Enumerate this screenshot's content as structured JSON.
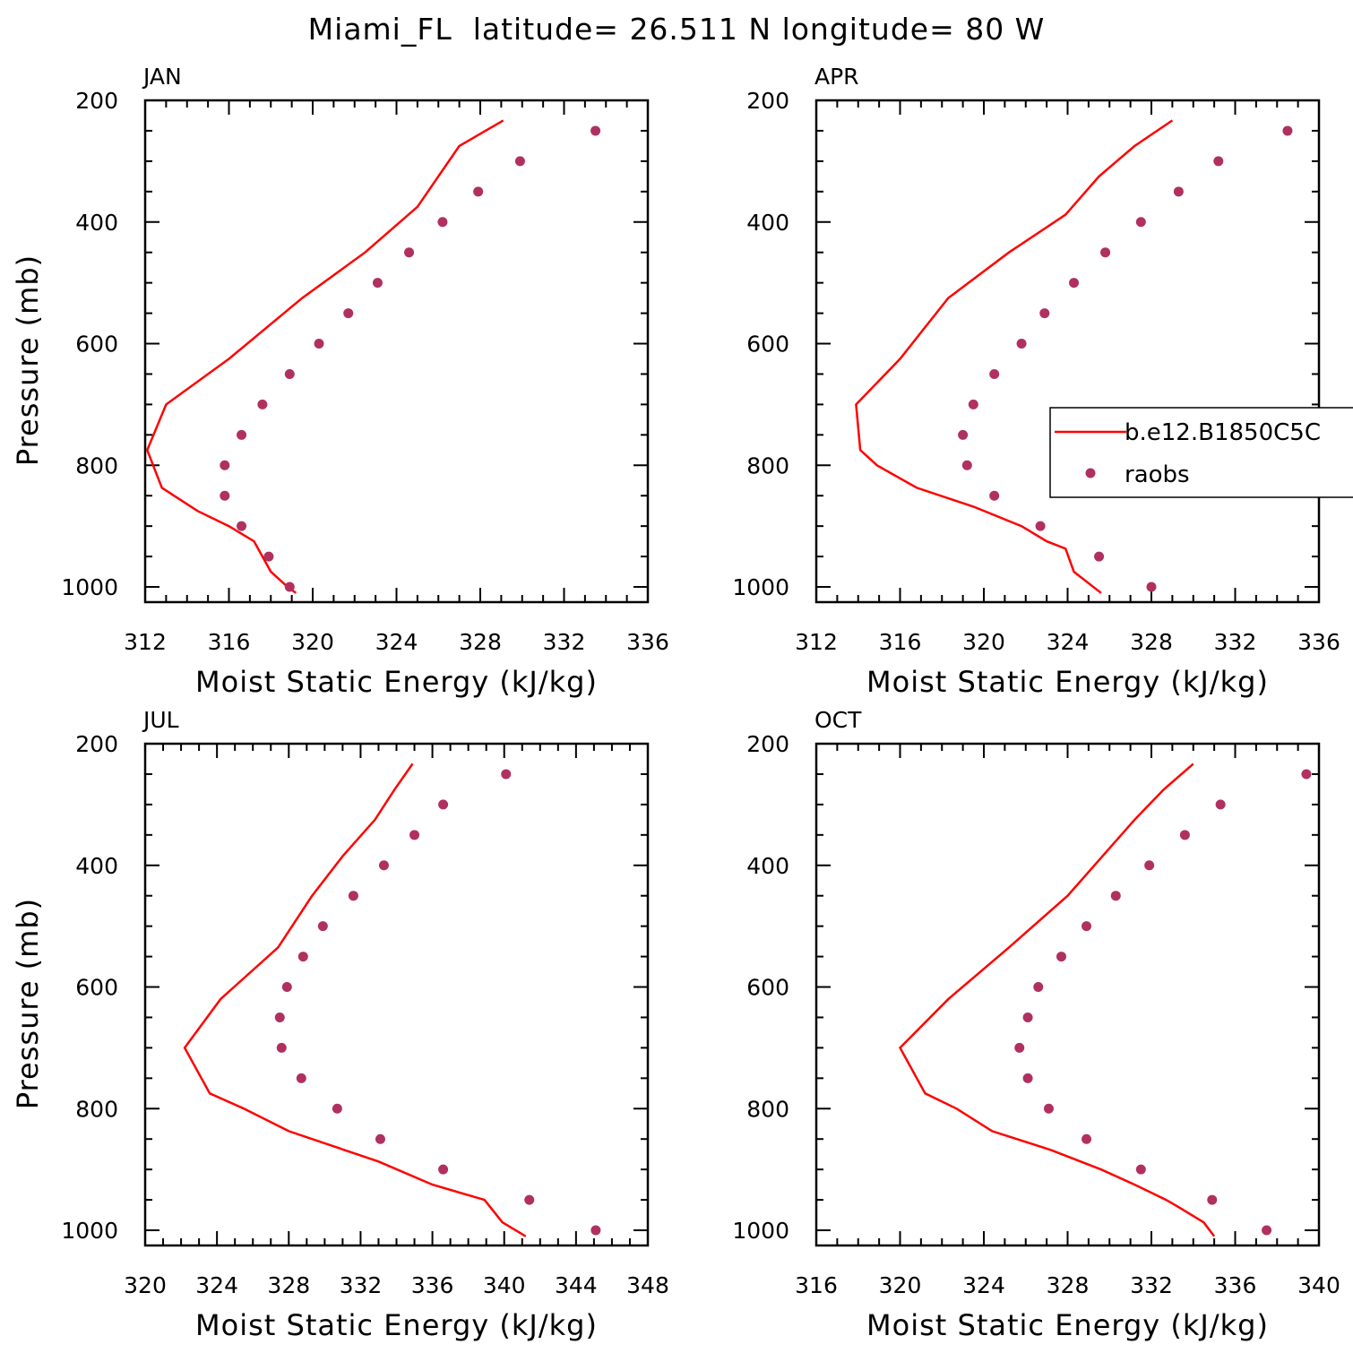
{
  "figure": {
    "title": "Miami_FL  latitude= 26.511 N longitude= 80 W"
  },
  "colors": {
    "model": "#ff0000",
    "obs": "#b03060",
    "axis": "#000000"
  },
  "legend": {
    "entries": [
      {
        "label": "b.e12.B1850C5C",
        "kind": "line"
      },
      {
        "label": "raobs",
        "kind": "marker"
      }
    ],
    "panel": 1,
    "placement": "right, middle of APR panel (clipped at figure edge)"
  },
  "chart_data": [
    {
      "type": "line",
      "title": "JAN",
      "xlabel": "Moist Static Energy (kJ/kg)",
      "ylabel": "Pressure (mb)",
      "xlim": [
        312,
        336
      ],
      "xticks": [
        "312",
        "316",
        "320",
        "324",
        "328",
        "332",
        "336"
      ],
      "ylim": [
        1025,
        200
      ],
      "yticks": [
        "200",
        "400",
        "600",
        "800",
        "1000"
      ],
      "series": [
        {
          "name": "b.e12.B1850C5C",
          "kind": "line",
          "points": [
            [
              319.2,
              1010
            ],
            [
              318.8,
              1000
            ],
            [
              318.0,
              975
            ],
            [
              317.2,
              925
            ],
            [
              316.0,
              900
            ],
            [
              314.5,
              875
            ],
            [
              312.8,
              837
            ],
            [
              312.1,
              775
            ],
            [
              313.0,
              700
            ],
            [
              316.0,
              625
            ],
            [
              319.5,
              525
            ],
            [
              322.5,
              450
            ],
            [
              325.0,
              375
            ],
            [
              327.0,
              275
            ],
            [
              329.1,
              233
            ]
          ]
        },
        {
          "name": "raobs",
          "kind": "scatter",
          "points": [
            [
              318.9,
              1000
            ],
            [
              317.9,
              950
            ],
            [
              316.6,
              900
            ],
            [
              315.8,
              850
            ],
            [
              315.8,
              800
            ],
            [
              316.6,
              750
            ],
            [
              317.6,
              700
            ],
            [
              318.9,
              650
            ],
            [
              320.3,
              600
            ],
            [
              321.7,
              550
            ],
            [
              323.1,
              500
            ],
            [
              324.6,
              450
            ],
            [
              326.2,
              400
            ],
            [
              327.9,
              350
            ],
            [
              329.9,
              300
            ],
            [
              333.5,
              250
            ]
          ]
        }
      ]
    },
    {
      "type": "line",
      "title": "APR",
      "xlabel": "Moist Static Energy (kJ/kg)",
      "ylabel": "",
      "xlim": [
        312,
        336
      ],
      "xticks": [
        "312",
        "316",
        "320",
        "324",
        "328",
        "332",
        "336"
      ],
      "ylim": [
        1025,
        200
      ],
      "yticks": [
        "200",
        "400",
        "600",
        "800",
        "1000"
      ],
      "series": [
        {
          "name": "b.e12.B1850C5C",
          "kind": "line",
          "points": [
            [
              325.6,
              1010
            ],
            [
              324.3,
              975
            ],
            [
              323.9,
              937
            ],
            [
              323.0,
              925
            ],
            [
              321.8,
              900
            ],
            [
              319.5,
              868
            ],
            [
              316.8,
              837
            ],
            [
              314.9,
              800
            ],
            [
              314.1,
              775
            ],
            [
              313.9,
              700
            ],
            [
              316.0,
              625
            ],
            [
              318.3,
              525
            ],
            [
              321.2,
              450
            ],
            [
              323.9,
              388
            ],
            [
              325.5,
              325
            ],
            [
              327.2,
              275
            ],
            [
              329.0,
              233
            ]
          ]
        },
        {
          "name": "raobs",
          "kind": "scatter",
          "points": [
            [
              328.0,
              1000
            ],
            [
              325.5,
              950
            ],
            [
              322.7,
              900
            ],
            [
              320.5,
              850
            ],
            [
              319.2,
              800
            ],
            [
              319.0,
              750
            ],
            [
              319.5,
              700
            ],
            [
              320.5,
              650
            ],
            [
              321.8,
              600
            ],
            [
              322.9,
              550
            ],
            [
              324.3,
              500
            ],
            [
              325.8,
              450
            ],
            [
              327.5,
              400
            ],
            [
              329.3,
              350
            ],
            [
              331.2,
              300
            ],
            [
              334.5,
              250
            ]
          ]
        }
      ]
    },
    {
      "type": "line",
      "title": "JUL",
      "xlabel": "Moist Static Energy (kJ/kg)",
      "ylabel": "Pressure (mb)",
      "xlim": [
        320,
        348
      ],
      "xticks": [
        "320",
        "324",
        "328",
        "332",
        "336",
        "340",
        "344",
        "348"
      ],
      "ylim": [
        1025,
        200
      ],
      "yticks": [
        "200",
        "400",
        "600",
        "800",
        "1000"
      ],
      "series": [
        {
          "name": "b.e12.B1850C5C",
          "kind": "line",
          "points": [
            [
              341.2,
              1010
            ],
            [
              339.9,
              987
            ],
            [
              338.9,
              950
            ],
            [
              336.0,
              925
            ],
            [
              333.0,
              887
            ],
            [
              328.0,
              837
            ],
            [
              325.5,
              800
            ],
            [
              323.6,
              775
            ],
            [
              322.2,
              700
            ],
            [
              324.2,
              620
            ],
            [
              327.4,
              535
            ],
            [
              329.3,
              450
            ],
            [
              331.0,
              385
            ],
            [
              332.8,
              325
            ],
            [
              333.9,
              275
            ],
            [
              334.9,
              233
            ]
          ]
        },
        {
          "name": "raobs",
          "kind": "scatter",
          "points": [
            [
              345.1,
              1000
            ],
            [
              341.4,
              950
            ],
            [
              336.6,
              900
            ],
            [
              333.1,
              850
            ],
            [
              330.7,
              800
            ],
            [
              328.7,
              750
            ],
            [
              327.6,
              700
            ],
            [
              327.5,
              650
            ],
            [
              327.9,
              600
            ],
            [
              328.8,
              550
            ],
            [
              329.9,
              500
            ],
            [
              331.6,
              450
            ],
            [
              333.3,
              400
            ],
            [
              335.0,
              350
            ],
            [
              336.6,
              300
            ],
            [
              340.1,
              250
            ]
          ]
        }
      ]
    },
    {
      "type": "line",
      "title": "OCT",
      "xlabel": "Moist Static Energy (kJ/kg)",
      "ylabel": "",
      "xlim": [
        316,
        340
      ],
      "xticks": [
        "316",
        "320",
        "324",
        "328",
        "332",
        "336",
        "340"
      ],
      "ylim": [
        1025,
        200
      ],
      "yticks": [
        "200",
        "400",
        "600",
        "800",
        "1000"
      ],
      "series": [
        {
          "name": "b.e12.B1850C5C",
          "kind": "line",
          "points": [
            [
              335.0,
              1010
            ],
            [
              334.5,
              987
            ],
            [
              333.3,
              962
            ],
            [
              332.7,
              950
            ],
            [
              331.2,
              925
            ],
            [
              329.6,
              900
            ],
            [
              327.2,
              868
            ],
            [
              324.4,
              837
            ],
            [
              322.7,
              800
            ],
            [
              321.2,
              775
            ],
            [
              320.0,
              700
            ],
            [
              322.3,
              620
            ],
            [
              325.2,
              535
            ],
            [
              328.0,
              450
            ],
            [
              331.2,
              325
            ],
            [
              332.6,
              275
            ],
            [
              334.0,
              233
            ]
          ]
        },
        {
          "name": "raobs",
          "kind": "scatter",
          "points": [
            [
              337.5,
              1000
            ],
            [
              334.9,
              950
            ],
            [
              331.5,
              900
            ],
            [
              328.9,
              850
            ],
            [
              327.1,
              800
            ],
            [
              326.1,
              750
            ],
            [
              325.7,
              700
            ],
            [
              326.1,
              650
            ],
            [
              326.6,
              600
            ],
            [
              327.7,
              550
            ],
            [
              328.9,
              500
            ],
            [
              330.3,
              450
            ],
            [
              331.9,
              400
            ],
            [
              333.6,
              350
            ],
            [
              335.3,
              300
            ],
            [
              339.4,
              250
            ]
          ]
        }
      ]
    }
  ]
}
